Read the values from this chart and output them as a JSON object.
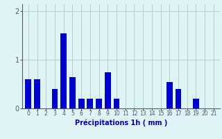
{
  "hours": [
    0,
    1,
    2,
    3,
    4,
    5,
    6,
    7,
    8,
    9,
    10,
    11,
    12,
    13,
    14,
    15,
    16,
    17,
    18,
    19,
    20,
    21
  ],
  "values": [
    0.6,
    0.6,
    0.0,
    0.4,
    1.55,
    0.65,
    0.2,
    0.2,
    0.2,
    0.75,
    0.2,
    0.0,
    0.0,
    0.0,
    0.0,
    0.0,
    0.55,
    0.4,
    0.0,
    0.2,
    0.0,
    0.0
  ],
  "bar_color": "#0000cc",
  "background_color": "#dff4f4",
  "grid_color": "#aacccc",
  "axis_color": "#555566",
  "text_color": "#0000bb",
  "xlabel": "Précipitations 1h ( mm )",
  "ylim": [
    0,
    2.15
  ],
  "yticks": [
    0,
    1,
    2
  ],
  "figsize": [
    3.2,
    2.0
  ],
  "dpi": 100
}
